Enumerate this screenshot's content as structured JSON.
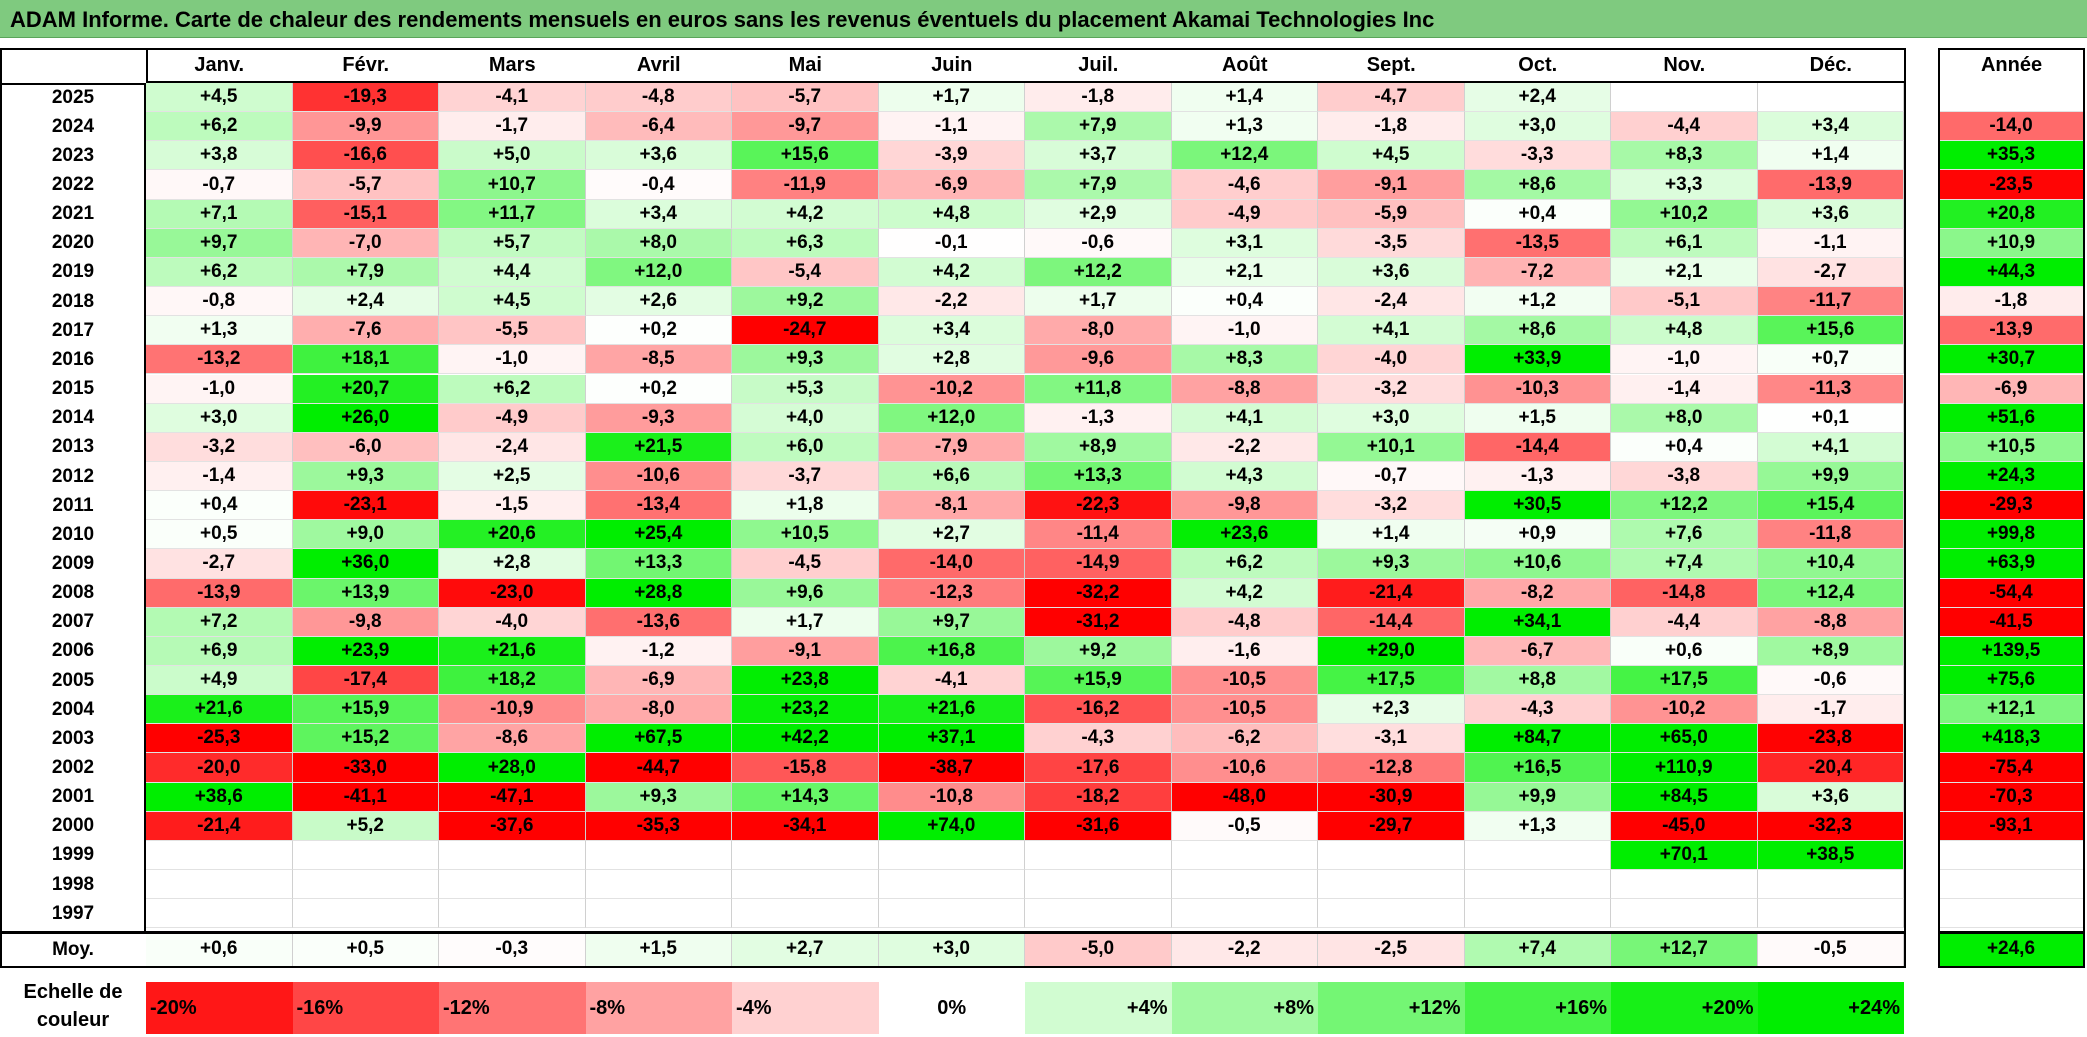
{
  "title": "ADAM Informe. Carte de chaleur des rendements mensuels en euros sans les revenus éventuels du placement Akamai Technologies Inc",
  "chart_data": {
    "type": "heatmap",
    "title": "ADAM Informe. Carte de chaleur des rendements mensuels en euros sans les revenus éventuels du placement Akamai Technologies Inc",
    "months": [
      "Janv.",
      "Févr.",
      "Mars",
      "Avril",
      "Mai",
      "Juin",
      "Juil.",
      "Août",
      "Sept.",
      "Oct.",
      "Nov.",
      "Déc."
    ],
    "year_header": "Année",
    "rows": [
      {
        "year": "2025",
        "values": [
          "+4,5",
          "-19,3",
          "-4,1",
          "-4,8",
          "-5,7",
          "+1,7",
          "-1,8",
          "+1,4",
          "-4,7",
          "+2,4",
          "",
          ""
        ],
        "annual": ""
      },
      {
        "year": "2024",
        "values": [
          "+6,2",
          "-9,9",
          "-1,7",
          "-6,4",
          "-9,7",
          "-1,1",
          "+7,9",
          "+1,3",
          "-1,8",
          "+3,0",
          "-4,4",
          "+3,4"
        ],
        "annual": "-14,0"
      },
      {
        "year": "2023",
        "values": [
          "+3,8",
          "-16,6",
          "+5,0",
          "+3,6",
          "+15,6",
          "-3,9",
          "+3,7",
          "+12,4",
          "+4,5",
          "-3,3",
          "+8,3",
          "+1,4"
        ],
        "annual": "+35,3"
      },
      {
        "year": "2022",
        "values": [
          "-0,7",
          "-5,7",
          "+10,7",
          "-0,4",
          "-11,9",
          "-6,9",
          "+7,9",
          "-4,6",
          "-9,1",
          "+8,6",
          "+3,3",
          "-13,9"
        ],
        "annual": "-23,5"
      },
      {
        "year": "2021",
        "values": [
          "+7,1",
          "-15,1",
          "+11,7",
          "+3,4",
          "+4,2",
          "+4,8",
          "+2,9",
          "-4,9",
          "-5,9",
          "+0,4",
          "+10,2",
          "+3,6"
        ],
        "annual": "+20,8"
      },
      {
        "year": "2020",
        "values": [
          "+9,7",
          "-7,0",
          "+5,7",
          "+8,0",
          "+6,3",
          "-0,1",
          "-0,6",
          "+3,1",
          "-3,5",
          "-13,5",
          "+6,1",
          "-1,1"
        ],
        "annual": "+10,9"
      },
      {
        "year": "2019",
        "values": [
          "+6,2",
          "+7,9",
          "+4,4",
          "+12,0",
          "-5,4",
          "+4,2",
          "+12,2",
          "+2,1",
          "+3,6",
          "-7,2",
          "+2,1",
          "-2,7"
        ],
        "annual": "+44,3"
      },
      {
        "year": "2018",
        "values": [
          "-0,8",
          "+2,4",
          "+4,5",
          "+2,6",
          "+9,2",
          "-2,2",
          "+1,7",
          "+0,4",
          "-2,4",
          "+1,2",
          "-5,1",
          "-11,7"
        ],
        "annual": "-1,8"
      },
      {
        "year": "2017",
        "values": [
          "+1,3",
          "-7,6",
          "-5,5",
          "+0,2",
          "-24,7",
          "+3,4",
          "-8,0",
          "-1,0",
          "+4,1",
          "+8,6",
          "+4,8",
          "+15,6"
        ],
        "annual": "-13,9"
      },
      {
        "year": "2016",
        "values": [
          "-13,2",
          "+18,1",
          "-1,0",
          "-8,5",
          "+9,3",
          "+2,8",
          "-9,6",
          "+8,3",
          "-4,0",
          "+33,9",
          "-1,0",
          "+0,7"
        ],
        "annual": "+30,7"
      },
      {
        "year": "2015",
        "values": [
          "-1,0",
          "+20,7",
          "+6,2",
          "+0,2",
          "+5,3",
          "-10,2",
          "+11,8",
          "-8,8",
          "-3,2",
          "-10,3",
          "-1,4",
          "-11,3"
        ],
        "annual": "-6,9"
      },
      {
        "year": "2014",
        "values": [
          "+3,0",
          "+26,0",
          "-4,9",
          "-9,3",
          "+4,0",
          "+12,0",
          "-1,3",
          "+4,1",
          "+3,0",
          "+1,5",
          "+8,0",
          "+0,1"
        ],
        "annual": "+51,6"
      },
      {
        "year": "2013",
        "values": [
          "-3,2",
          "-6,0",
          "-2,4",
          "+21,5",
          "+6,0",
          "-7,9",
          "+8,9",
          "-2,2",
          "+10,1",
          "-14,4",
          "+0,4",
          "+4,1"
        ],
        "annual": "+10,5"
      },
      {
        "year": "2012",
        "values": [
          "-1,4",
          "+9,3",
          "+2,5",
          "-10,6",
          "-3,7",
          "+6,6",
          "+13,3",
          "+4,3",
          "-0,7",
          "-1,3",
          "-3,8",
          "+9,9"
        ],
        "annual": "+24,3"
      },
      {
        "year": "2011",
        "values": [
          "+0,4",
          "-23,1",
          "-1,5",
          "-13,4",
          "+1,8",
          "-8,1",
          "-22,3",
          "-9,8",
          "-3,2",
          "+30,5",
          "+12,2",
          "+15,4"
        ],
        "annual": "-29,3"
      },
      {
        "year": "2010",
        "values": [
          "+0,5",
          "+9,0",
          "+20,6",
          "+25,4",
          "+10,5",
          "+2,7",
          "-11,4",
          "+23,6",
          "+1,4",
          "+0,9",
          "+7,6",
          "-11,8"
        ],
        "annual": "+99,8"
      },
      {
        "year": "2009",
        "values": [
          "-2,7",
          "+36,0",
          "+2,8",
          "+13,3",
          "-4,5",
          "-14,0",
          "-14,9",
          "+6,2",
          "+9,3",
          "+10,6",
          "+7,4",
          "+10,4"
        ],
        "annual": "+63,9"
      },
      {
        "year": "2008",
        "values": [
          "-13,9",
          "+13,9",
          "-23,0",
          "+28,8",
          "+9,6",
          "-12,3",
          "-32,2",
          "+4,2",
          "-21,4",
          "-8,2",
          "-14,8",
          "+12,4"
        ],
        "annual": "-54,4"
      },
      {
        "year": "2007",
        "values": [
          "+7,2",
          "-9,8",
          "-4,0",
          "-13,6",
          "+1,7",
          "+9,7",
          "-31,2",
          "-4,8",
          "-14,4",
          "+34,1",
          "-4,4",
          "-8,8"
        ],
        "annual": "-41,5"
      },
      {
        "year": "2006",
        "values": [
          "+6,9",
          "+23,9",
          "+21,6",
          "-1,2",
          "-9,1",
          "+16,8",
          "+9,2",
          "-1,6",
          "+29,0",
          "-6,7",
          "+0,6",
          "+8,9"
        ],
        "annual": "+139,5"
      },
      {
        "year": "2005",
        "values": [
          "+4,9",
          "-17,4",
          "+18,2",
          "-6,9",
          "+23,8",
          "-4,1",
          "+15,9",
          "-10,5",
          "+17,5",
          "+8,8",
          "+17,5",
          "-0,6"
        ],
        "annual": "+75,6"
      },
      {
        "year": "2004",
        "values": [
          "+21,6",
          "+15,9",
          "-10,9",
          "-8,0",
          "+23,2",
          "+21,6",
          "-16,2",
          "-10,5",
          "+2,3",
          "-4,3",
          "-10,2",
          "-1,7"
        ],
        "annual": "+12,1"
      },
      {
        "year": "2003",
        "values": [
          "-25,3",
          "+15,2",
          "-8,6",
          "+67,5",
          "+42,2",
          "+37,1",
          "-4,3",
          "-6,2",
          "-3,1",
          "+84,7",
          "+65,0",
          "-23,8"
        ],
        "annual": "+418,3"
      },
      {
        "year": "2002",
        "values": [
          "-20,0",
          "-33,0",
          "+28,0",
          "-44,7",
          "-15,8",
          "-38,7",
          "-17,6",
          "-10,6",
          "-12,8",
          "+16,5",
          "+110,9",
          "-20,4"
        ],
        "annual": "-75,4"
      },
      {
        "year": "2001",
        "values": [
          "+38,6",
          "-41,1",
          "-47,1",
          "+9,3",
          "+14,3",
          "-10,8",
          "-18,2",
          "-48,0",
          "-30,9",
          "+9,9",
          "+84,5",
          "+3,6"
        ],
        "annual": "-70,3"
      },
      {
        "year": "2000",
        "values": [
          "-21,4",
          "+5,2",
          "-37,6",
          "-35,3",
          "-34,1",
          "+74,0",
          "-31,6",
          "-0,5",
          "-29,7",
          "+1,3",
          "-45,0",
          "-32,3"
        ],
        "annual": "-93,1"
      },
      {
        "year": "1999",
        "values": [
          "",
          "",
          "",
          "",
          "",
          "",
          "",
          "",
          "",
          "",
          "+70,1",
          "+38,5"
        ],
        "annual": ""
      },
      {
        "year": "1998",
        "values": [
          "",
          "",
          "",
          "",
          "",
          "",
          "",
          "",
          "",
          "",
          "",
          ""
        ],
        "annual": ""
      },
      {
        "year": "1997",
        "values": [
          "",
          "",
          "",
          "",
          "",
          "",
          "",
          "",
          "",
          "",
          "",
          ""
        ],
        "annual": ""
      }
    ],
    "average": {
      "label": "Moy.",
      "values": [
        "+0,6",
        "+0,5",
        "-0,3",
        "+1,5",
        "+2,7",
        "+3,0",
        "-5,0",
        "-2,2",
        "-2,5",
        "+7,4",
        "+12,7",
        "-0,5"
      ],
      "annual": "+24,6"
    },
    "legend": {
      "label_line1": "Echelle de",
      "label_line2": "couleur",
      "items": [
        "-20%",
        "-16%",
        "-12%",
        "-8%",
        "-4%",
        "0%",
        "+4%",
        "+8%",
        "+12%",
        "+16%",
        "+20%",
        "+24%"
      ],
      "values": [
        -20,
        -16,
        -12,
        -8,
        -4,
        0,
        4,
        8,
        12,
        16,
        20,
        24
      ]
    },
    "colors": {
      "negative": "#ff0000",
      "positive": "#00ee00",
      "neutral": "#ffffff",
      "title_bar": "#7fca7f"
    }
  }
}
